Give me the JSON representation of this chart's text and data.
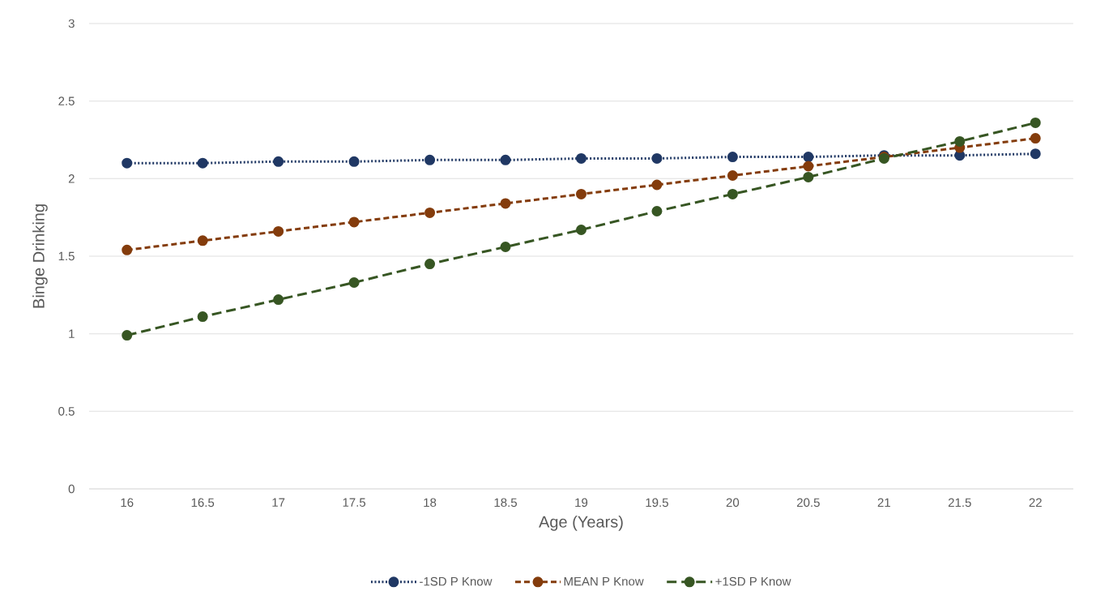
{
  "chart_data": {
    "type": "line",
    "xlabel": "Age (Years)",
    "ylabel": "Binge Drinking",
    "categories": [
      "16",
      "16.5",
      "17",
      "17.5",
      "18",
      "18.5",
      "19",
      "19.5",
      "20",
      "20.5",
      "21",
      "21.5",
      "22"
    ],
    "series": [
      {
        "name": "-1SD P Know",
        "color": "#203864",
        "line_style": "dotted",
        "values": [
          2.1,
          2.1,
          2.11,
          2.11,
          2.12,
          2.12,
          2.13,
          2.13,
          2.14,
          2.14,
          2.15,
          2.15,
          2.16
        ]
      },
      {
        "name": "MEAN P Know",
        "color": "#843c0c",
        "line_style": "dashed",
        "values": [
          1.54,
          1.6,
          1.66,
          1.72,
          1.78,
          1.84,
          1.9,
          1.96,
          2.02,
          2.08,
          2.14,
          2.2,
          2.26
        ]
      },
      {
        "name": "+1SD P Know",
        "color": "#375623",
        "line_style": "dashed",
        "values": [
          0.99,
          1.11,
          1.22,
          1.33,
          1.45,
          1.56,
          1.67,
          1.79,
          1.9,
          2.01,
          2.13,
          2.24,
          2.36
        ]
      }
    ],
    "ylim": [
      0,
      3
    ],
    "yticks": [
      0,
      0.5,
      1,
      1.5,
      2,
      2.5,
      3
    ],
    "grid": "y",
    "legend": "bottom",
    "marker": "circle"
  }
}
